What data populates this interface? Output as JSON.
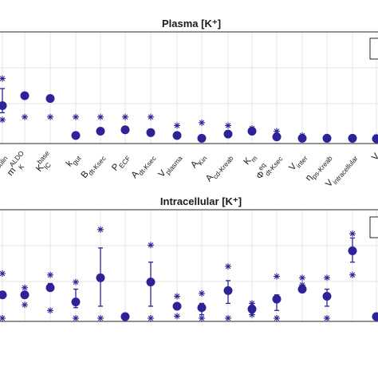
{
  "chart_data": [
    {
      "type": "scatter",
      "title": "Plasma [K⁺]",
      "ylim": [
        0,
        1
      ],
      "grid": true,
      "legend": "top-right",
      "categories": [
        {
          "main": "",
          "sub": "insulin",
          "sup": ""
        },
        {
          "main": "m",
          "sub": "K",
          "sup": "ALDO"
        },
        {
          "main": "K",
          "sub": "IC",
          "sup": "base"
        },
        {
          "main": "k",
          "sub": "gut",
          "sup": ""
        },
        {
          "main": "B",
          "sub": "dt-Ksec",
          "sup": ""
        },
        {
          "main": "P",
          "sub": "ECF",
          "sup": ""
        },
        {
          "main": "A",
          "sub": "dt-Ksec",
          "sup": ""
        },
        {
          "main": "V",
          "sub": "plasma",
          "sup": ""
        },
        {
          "main": "A",
          "sub": "Kin",
          "sup": ""
        },
        {
          "main": "A",
          "sub": "cd-Kreab",
          "sup": ""
        },
        {
          "main": "K",
          "sub": "m",
          "sup": ""
        },
        {
          "main": "Φ",
          "sub": "dt-Ksec",
          "sup": "eq"
        },
        {
          "main": "V",
          "sub": "inter",
          "sup": ""
        },
        {
          "main": "η",
          "sub": "ps-Kreab",
          "sup": ""
        },
        {
          "main": "V",
          "sub": "intracellular",
          "sup": ""
        },
        {
          "main": "V",
          "sub": "",
          "sup": ""
        }
      ],
      "series": [
        {
          "values": [
            0.25,
            0.32,
            0.3,
            0.04,
            0.07,
            0.08,
            0.06,
            0.04,
            0.02,
            0.05,
            0.07,
            0.03,
            0.02,
            0.02,
            0.02,
            0.01
          ],
          "err_low": [
            0.2,
            0.32,
            0.3,
            0.04,
            0.07,
            0.08,
            0.06,
            0.04,
            0.02,
            0.03,
            0.07,
            0.03,
            0.02,
            0.02,
            0.02,
            0.01
          ],
          "err_high": [
            0.37,
            0.32,
            0.3,
            0.04,
            0.07,
            0.08,
            0.06,
            0.04,
            0.02,
            0.07,
            0.07,
            0.03,
            0.02,
            0.02,
            0.02,
            0.01
          ]
        },
        {
          "values": [
            0.15,
            0.17,
            0.17,
            0.17,
            0.17,
            0.17,
            0.17,
            0.11,
            0.13,
            0.11,
            0.09,
            0.07,
            0.04,
            0.03,
            0.01,
            0.03
          ]
        },
        {
          "values": [
            0.44,
            null,
            null,
            null,
            null,
            null,
            null,
            null,
            null,
            null,
            null,
            null,
            null,
            null,
            null,
            null
          ]
        }
      ]
    },
    {
      "type": "scatter",
      "title": "Intracellular [K⁺]",
      "ylim": [
        0,
        1
      ],
      "grid": true,
      "legend": "top-right",
      "categories": [
        {
          "main": "",
          "sub": "",
          "sup": ""
        },
        {
          "main": "",
          "sub": "",
          "sup": ""
        },
        {
          "main": "",
          "sub": "",
          "sup": ""
        },
        {
          "main": "",
          "sub": "",
          "sup": ""
        },
        {
          "main": "",
          "sub": "",
          "sup": ""
        },
        {
          "main": "",
          "sub": "",
          "sup": ""
        },
        {
          "main": "",
          "sub": "",
          "sup": ""
        },
        {
          "main": "",
          "sub": "",
          "sup": ""
        },
        {
          "main": "",
          "sub": "",
          "sup": ""
        },
        {
          "main": "",
          "sub": "",
          "sup": ""
        },
        {
          "main": "",
          "sub": "",
          "sup": ""
        },
        {
          "main": "",
          "sub": "",
          "sup": ""
        },
        {
          "main": "",
          "sub": "",
          "sup": ""
        },
        {
          "main": "",
          "sub": "",
          "sup": ""
        },
        {
          "main": "",
          "sub": "",
          "sup": ""
        },
        {
          "main": "",
          "sub": "",
          "sup": ""
        }
      ],
      "series": [
        {
          "values": [
            0.17,
            0.17,
            0.22,
            0.12,
            0.29,
            0.01,
            0.26,
            0.09,
            0.08,
            0.2,
            0.07,
            0.14,
            0.21,
            0.16,
            0.48,
            0.01
          ],
          "err_low": [
            0.17,
            0.17,
            0.2,
            0.08,
            0.09,
            0.01,
            0.09,
            0.09,
            0.03,
            0.11,
            0.07,
            0.06,
            0.21,
            0.09,
            0.4,
            0.01
          ],
          "err_high": [
            0.17,
            0.17,
            0.25,
            0.21,
            0.5,
            0.01,
            0.4,
            0.09,
            0.11,
            0.27,
            0.07,
            0.17,
            0.21,
            0.21,
            0.57,
            0.01
          ]
        },
        {
          "values": [
            0.32,
            0.22,
            0.31,
            0.26,
            0.63,
            0.02,
            0.52,
            0.16,
            0.18,
            0.37,
            0.11,
            0.3,
            0.29,
            0.29,
            0.6,
            null
          ]
        },
        {
          "values": [
            0.0,
            0.1,
            0.06,
            0.0,
            0.0,
            0.0,
            0.0,
            0.02,
            0.0,
            0.0,
            0.03,
            0.0,
            0.24,
            0.0,
            0.31,
            0.0
          ]
        }
      ]
    }
  ],
  "colors": {
    "marker": "#2e2298",
    "axis": "#262626",
    "grid": "#e6e6e6",
    "text": "#1a1a1a"
  }
}
